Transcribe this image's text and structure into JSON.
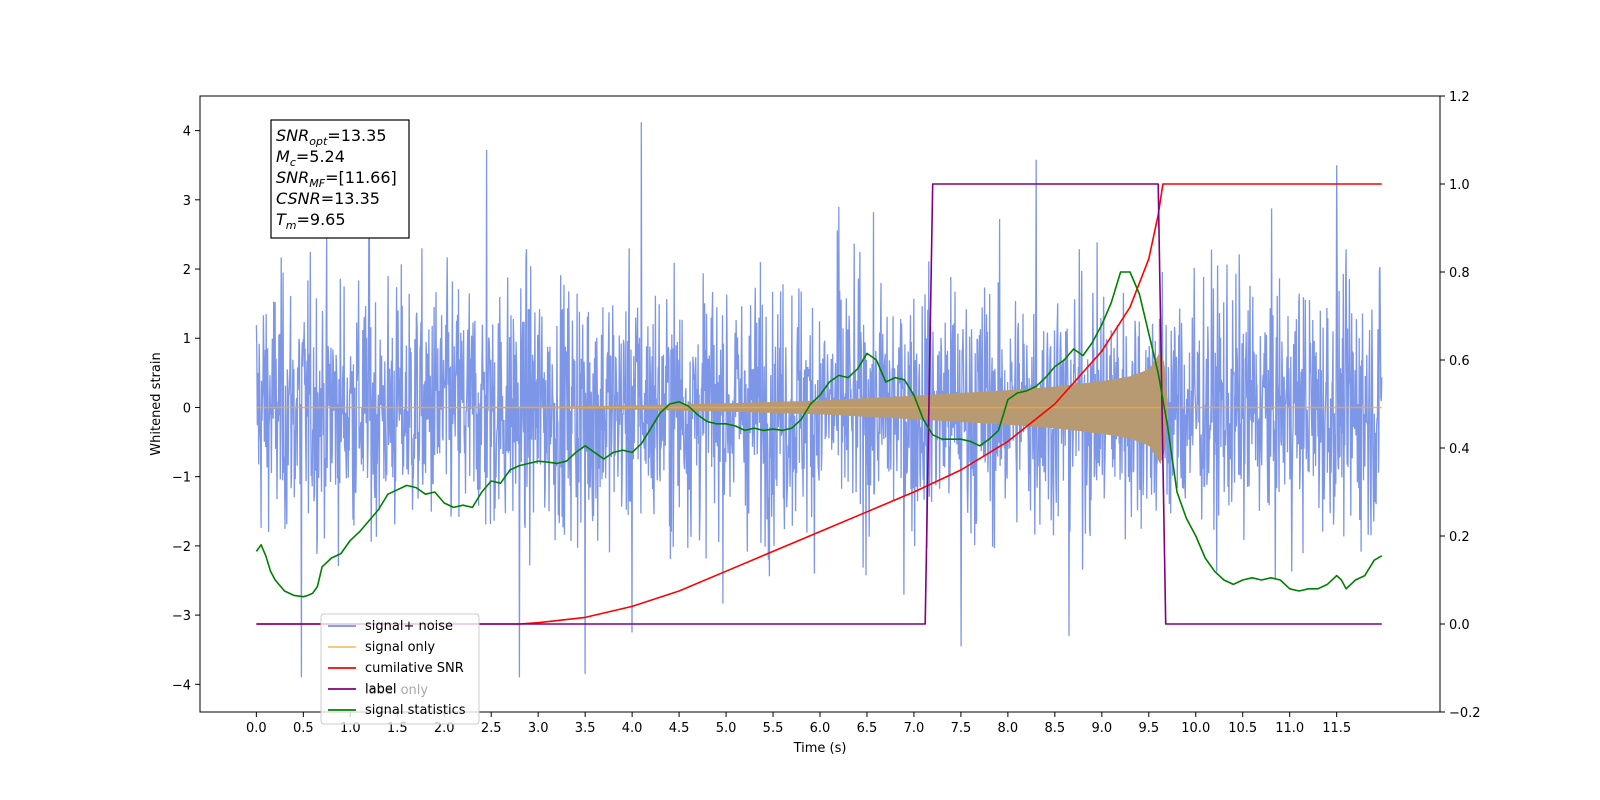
{
  "chart_data": {
    "type": "line",
    "xlabel": "Time (s)",
    "ylabel_left": "Whitened strain",
    "ylabel_right": "",
    "xlim": [
      -0.6,
      12.6
    ],
    "ylim_left": [
      -4.4,
      4.5
    ],
    "ylim_right": [
      -0.2,
      1.2
    ],
    "grid": false,
    "legend_position": "lower-left",
    "x_ticks": [
      0.0,
      0.5,
      1.0,
      1.5,
      2.0,
      2.5,
      3.0,
      3.5,
      4.0,
      4.5,
      5.0,
      5.5,
      6.0,
      6.5,
      7.0,
      7.5,
      8.0,
      8.5,
      9.0,
      9.5,
      10.0,
      10.5,
      11.0,
      11.5
    ],
    "x_tick_labels": [
      "0.0",
      "0.5",
      "1.0",
      "1.5",
      "2.0",
      "2.5",
      "3.0",
      "3.5",
      "4.0",
      "4.5",
      "5.0",
      "5.5",
      "6.0",
      "6.5",
      "7.0",
      "7.5",
      "8.0",
      "8.5",
      "9.0",
      "9.5",
      "10.0",
      "10.5",
      "11.0",
      "11.5"
    ],
    "y_left_ticks": [
      -4,
      -3,
      -2,
      -1,
      0,
      1,
      2,
      3,
      4
    ],
    "y_left_tick_labels": [
      "−4",
      "−3",
      "−2",
      "−1",
      "0",
      "1",
      "2",
      "3",
      "4"
    ],
    "y_right_ticks": [
      -0.2,
      0.0,
      0.2,
      0.4,
      0.6,
      0.8,
      1.0,
      1.2
    ],
    "y_right_tick_labels": [
      "−0.2",
      "0.0",
      "0.2",
      "0.4",
      "0.6",
      "0.8",
      "1.0",
      "1.2"
    ],
    "annotation": {
      "lines": [
        {
          "main": "SNR",
          "sub": "opt",
          "rest": "=13.35"
        },
        {
          "main": "M",
          "sub": "c",
          "rest": "=5.24"
        },
        {
          "main": "SNR",
          "sub": "MF",
          "rest": "=[11.66]"
        },
        {
          "main": "CSNR",
          "sub": "",
          "rest": "=13.35"
        },
        {
          "main": "T",
          "sub": "m",
          "rest": "=9.65"
        }
      ]
    },
    "series": [
      {
        "name": "signal+ noise",
        "axis": "left",
        "color": "#7690e6",
        "kind": "noise",
        "x_range": [
          0.0,
          11.98
        ],
        "typical_range": [
          -2.3,
          2.3
        ],
        "peak_points": [
          [
            0.48,
            -3.9
          ],
          [
            2.45,
            3.72
          ],
          [
            2.8,
            -3.9
          ],
          [
            3.5,
            -3.85
          ],
          [
            4.1,
            4.12
          ],
          [
            4.0,
            -3.25
          ],
          [
            7.5,
            -3.45
          ],
          [
            8.3,
            3.58
          ],
          [
            8.65,
            -3.3
          ],
          [
            11.5,
            3.5
          ],
          [
            1.2,
            2.9
          ],
          [
            6.2,
            2.9
          ]
        ]
      },
      {
        "name": "signal only",
        "axis": "left",
        "color": "#f5a838",
        "kind": "chirp",
        "x_range": [
          0.0,
          11.98
        ],
        "merger_time": 9.65,
        "envelope": [
          [
            0.0,
            0.0
          ],
          [
            3.0,
            0.01
          ],
          [
            4.0,
            0.03
          ],
          [
            5.0,
            0.06
          ],
          [
            6.0,
            0.1
          ],
          [
            7.0,
            0.17
          ],
          [
            8.0,
            0.25
          ],
          [
            8.5,
            0.3
          ],
          [
            9.0,
            0.38
          ],
          [
            9.3,
            0.45
          ],
          [
            9.5,
            0.55
          ],
          [
            9.6,
            0.75
          ],
          [
            9.65,
            0.9
          ],
          [
            9.7,
            0.0
          ],
          [
            11.98,
            0.0
          ]
        ]
      },
      {
        "name": "cumilative SNR",
        "axis": "right",
        "color": "#ff0000",
        "points": [
          [
            0.0,
            0.0
          ],
          [
            2.8,
            0.0
          ],
          [
            3.0,
            0.003
          ],
          [
            3.5,
            0.015
          ],
          [
            4.0,
            0.04
          ],
          [
            4.5,
            0.075
          ],
          [
            5.0,
            0.12
          ],
          [
            5.5,
            0.165
          ],
          [
            6.0,
            0.21
          ],
          [
            6.5,
            0.255
          ],
          [
            7.0,
            0.3
          ],
          [
            7.5,
            0.35
          ],
          [
            8.0,
            0.415
          ],
          [
            8.5,
            0.5
          ],
          [
            9.0,
            0.62
          ],
          [
            9.3,
            0.72
          ],
          [
            9.5,
            0.83
          ],
          [
            9.6,
            0.93
          ],
          [
            9.65,
            1.0
          ],
          [
            11.98,
            1.0
          ]
        ]
      },
      {
        "name": "label",
        "axis": "right",
        "color": "#800080",
        "points": [
          [
            0.0,
            0.0
          ],
          [
            7.12,
            0.0
          ],
          [
            7.2,
            1.0
          ],
          [
            9.6,
            1.0
          ],
          [
            9.68,
            0.0
          ],
          [
            11.98,
            0.0
          ]
        ]
      },
      {
        "name": "signal statistics",
        "axis": "right",
        "color": "#008000",
        "points": [
          [
            0.0,
            0.165
          ],
          [
            0.05,
            0.18
          ],
          [
            0.1,
            0.155
          ],
          [
            0.15,
            0.12
          ],
          [
            0.2,
            0.1
          ],
          [
            0.3,
            0.075
          ],
          [
            0.4,
            0.065
          ],
          [
            0.5,
            0.062
          ],
          [
            0.55,
            0.065
          ],
          [
            0.6,
            0.07
          ],
          [
            0.65,
            0.085
          ],
          [
            0.7,
            0.13
          ],
          [
            0.8,
            0.15
          ],
          [
            0.9,
            0.16
          ],
          [
            1.0,
            0.19
          ],
          [
            1.1,
            0.21
          ],
          [
            1.2,
            0.235
          ],
          [
            1.3,
            0.26
          ],
          [
            1.4,
            0.295
          ],
          [
            1.5,
            0.305
          ],
          [
            1.6,
            0.315
          ],
          [
            1.7,
            0.31
          ],
          [
            1.8,
            0.295
          ],
          [
            1.9,
            0.3
          ],
          [
            2.0,
            0.275
          ],
          [
            2.1,
            0.265
          ],
          [
            2.2,
            0.27
          ],
          [
            2.3,
            0.265
          ],
          [
            2.4,
            0.3
          ],
          [
            2.5,
            0.325
          ],
          [
            2.6,
            0.32
          ],
          [
            2.7,
            0.35
          ],
          [
            2.8,
            0.36
          ],
          [
            2.9,
            0.365
          ],
          [
            3.0,
            0.37
          ],
          [
            3.1,
            0.368
          ],
          [
            3.2,
            0.365
          ],
          [
            3.3,
            0.37
          ],
          [
            3.4,
            0.39
          ],
          [
            3.5,
            0.405
          ],
          [
            3.6,
            0.39
          ],
          [
            3.7,
            0.375
          ],
          [
            3.8,
            0.39
          ],
          [
            3.9,
            0.395
          ],
          [
            4.0,
            0.39
          ],
          [
            4.1,
            0.41
          ],
          [
            4.2,
            0.445
          ],
          [
            4.3,
            0.48
          ],
          [
            4.4,
            0.5
          ],
          [
            4.5,
            0.505
          ],
          [
            4.6,
            0.495
          ],
          [
            4.7,
            0.475
          ],
          [
            4.8,
            0.46
          ],
          [
            4.9,
            0.455
          ],
          [
            5.0,
            0.455
          ],
          [
            5.1,
            0.45
          ],
          [
            5.2,
            0.44
          ],
          [
            5.3,
            0.445
          ],
          [
            5.4,
            0.44
          ],
          [
            5.5,
            0.443
          ],
          [
            5.6,
            0.44
          ],
          [
            5.7,
            0.445
          ],
          [
            5.8,
            0.465
          ],
          [
            5.9,
            0.5
          ],
          [
            6.0,
            0.52
          ],
          [
            6.1,
            0.55
          ],
          [
            6.2,
            0.565
          ],
          [
            6.3,
            0.56
          ],
          [
            6.4,
            0.58
          ],
          [
            6.5,
            0.615
          ],
          [
            6.6,
            0.6
          ],
          [
            6.7,
            0.55
          ],
          [
            6.8,
            0.56
          ],
          [
            6.9,
            0.555
          ],
          [
            7.0,
            0.52
          ],
          [
            7.1,
            0.465
          ],
          [
            7.2,
            0.43
          ],
          [
            7.3,
            0.42
          ],
          [
            7.4,
            0.42
          ],
          [
            7.5,
            0.42
          ],
          [
            7.6,
            0.415
          ],
          [
            7.7,
            0.405
          ],
          [
            7.8,
            0.42
          ],
          [
            7.9,
            0.44
          ],
          [
            8.0,
            0.51
          ],
          [
            8.1,
            0.525
          ],
          [
            8.2,
            0.53
          ],
          [
            8.3,
            0.54
          ],
          [
            8.4,
            0.56
          ],
          [
            8.5,
            0.585
          ],
          [
            8.6,
            0.6
          ],
          [
            8.7,
            0.625
          ],
          [
            8.8,
            0.61
          ],
          [
            8.9,
            0.64
          ],
          [
            9.0,
            0.68
          ],
          [
            9.1,
            0.73
          ],
          [
            9.2,
            0.8
          ],
          [
            9.3,
            0.8
          ],
          [
            9.4,
            0.75
          ],
          [
            9.5,
            0.66
          ],
          [
            9.6,
            0.57
          ],
          [
            9.7,
            0.45
          ],
          [
            9.8,
            0.3
          ],
          [
            9.9,
            0.24
          ],
          [
            10.0,
            0.2
          ],
          [
            10.1,
            0.15
          ],
          [
            10.2,
            0.12
          ],
          [
            10.3,
            0.1
          ],
          [
            10.4,
            0.09
          ],
          [
            10.5,
            0.1
          ],
          [
            10.6,
            0.105
          ],
          [
            10.7,
            0.1
          ],
          [
            10.8,
            0.105
          ],
          [
            10.9,
            0.1
          ],
          [
            11.0,
            0.08
          ],
          [
            11.1,
            0.075
          ],
          [
            11.2,
            0.08
          ],
          [
            11.3,
            0.08
          ],
          [
            11.4,
            0.09
          ],
          [
            11.5,
            0.11
          ],
          [
            11.55,
            0.1
          ],
          [
            11.6,
            0.08
          ],
          [
            11.7,
            0.1
          ],
          [
            11.8,
            0.11
          ],
          [
            11.9,
            0.145
          ],
          [
            11.98,
            0.155
          ]
        ]
      }
    ],
    "legend": [
      {
        "label": "signal+ noise",
        "color": "#7690e6"
      },
      {
        "label": "signal only",
        "color": "#f5c26a"
      },
      {
        "label": "cumilative SNR",
        "color": "#ff0000"
      },
      {
        "label": "label",
        "color": "#800080"
      },
      {
        "label": "signal statistics",
        "color": "#008000"
      }
    ],
    "legend_overlapped_text": "label only"
  }
}
